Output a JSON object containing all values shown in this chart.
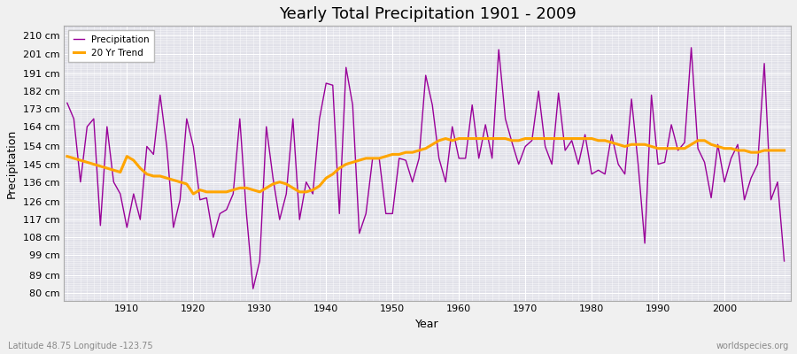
{
  "title": "Yearly Total Precipitation 1901 - 2009",
  "xlabel": "Year",
  "ylabel": "Precipitation",
  "lat_lon_label": "Latitude 48.75 Longitude -123.75",
  "source_label": "worldspecies.org",
  "years": [
    1901,
    1902,
    1903,
    1904,
    1905,
    1906,
    1907,
    1908,
    1909,
    1910,
    1911,
    1912,
    1913,
    1914,
    1915,
    1916,
    1917,
    1918,
    1919,
    1920,
    1921,
    1922,
    1923,
    1924,
    1925,
    1926,
    1927,
    1928,
    1929,
    1930,
    1931,
    1932,
    1933,
    1934,
    1935,
    1936,
    1937,
    1938,
    1939,
    1940,
    1941,
    1942,
    1943,
    1944,
    1945,
    1946,
    1947,
    1948,
    1949,
    1950,
    1951,
    1952,
    1953,
    1954,
    1955,
    1956,
    1957,
    1958,
    1959,
    1960,
    1961,
    1962,
    1963,
    1964,
    1965,
    1966,
    1967,
    1968,
    1969,
    1970,
    1971,
    1972,
    1973,
    1974,
    1975,
    1976,
    1977,
    1978,
    1979,
    1980,
    1981,
    1982,
    1983,
    1984,
    1985,
    1986,
    1987,
    1988,
    1989,
    1990,
    1991,
    1992,
    1993,
    1994,
    1995,
    1996,
    1997,
    1998,
    1999,
    2000,
    2001,
    2002,
    2003,
    2004,
    2005,
    2006,
    2007,
    2008,
    2009
  ],
  "precip": [
    176,
    168,
    136,
    164,
    168,
    114,
    164,
    136,
    130,
    113,
    130,
    117,
    154,
    150,
    180,
    154,
    113,
    127,
    168,
    154,
    127,
    128,
    108,
    120,
    122,
    130,
    168,
    120,
    82,
    96,
    164,
    138,
    117,
    130,
    168,
    117,
    136,
    130,
    168,
    186,
    185,
    120,
    194,
    175,
    110,
    120,
    148,
    148,
    120,
    120,
    148,
    147,
    136,
    148,
    190,
    175,
    148,
    136,
    164,
    148,
    148,
    175,
    148,
    165,
    148,
    203,
    168,
    156,
    145,
    154,
    157,
    182,
    154,
    145,
    181,
    152,
    157,
    145,
    160,
    140,
    142,
    140,
    160,
    145,
    140,
    178,
    145,
    105,
    180,
    145,
    146,
    165,
    152,
    156,
    204,
    153,
    146,
    128,
    155,
    136,
    148,
    155,
    127,
    138,
    145,
    196,
    127,
    136,
    96
  ],
  "trend": [
    149,
    148,
    147,
    146,
    145,
    144,
    143,
    142,
    141,
    149,
    147,
    143,
    140,
    139,
    139,
    138,
    137,
    136,
    135,
    130,
    132,
    131,
    131,
    131,
    131,
    132,
    133,
    133,
    132,
    131,
    133,
    135,
    136,
    135,
    133,
    131,
    131,
    132,
    134,
    138,
    140,
    143,
    145,
    146,
    147,
    148,
    148,
    148,
    149,
    150,
    150,
    151,
    151,
    152,
    153,
    155,
    157,
    158,
    157,
    158,
    158,
    158,
    158,
    158,
    158,
    158,
    158,
    157,
    157,
    158,
    158,
    158,
    158,
    158,
    158,
    158,
    158,
    158,
    158,
    158,
    157,
    157,
    156,
    155,
    154,
    155,
    155,
    155,
    154,
    153,
    153,
    153,
    153,
    153,
    155,
    157,
    157,
    155,
    154,
    153,
    153,
    152,
    152,
    151,
    151,
    152,
    152,
    152,
    152
  ],
  "precip_color": "#990099",
  "trend_color": "#FFA500",
  "background_color": "#F0F0F0",
  "plot_bg_color": "#E0E0E8",
  "grid_color": "#FFFFFF",
  "yticks": [
    80,
    89,
    99,
    108,
    117,
    126,
    136,
    145,
    154,
    164,
    173,
    182,
    191,
    201,
    210
  ],
  "ylim": [
    76,
    215
  ],
  "xlim": [
    1900.5,
    2010
  ],
  "xticks": [
    1910,
    1920,
    1930,
    1940,
    1950,
    1960,
    1970,
    1980,
    1990,
    2000
  ]
}
